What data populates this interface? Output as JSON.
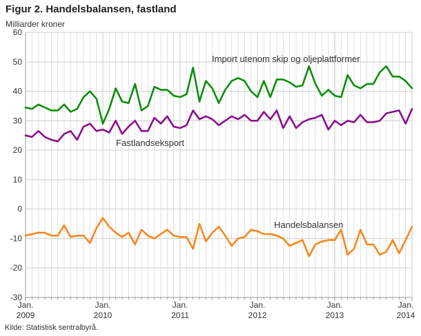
{
  "header": {
    "title": "Figur 2. Handelsbalansen, fastland",
    "unit_label": "Milliarder kroner"
  },
  "footer": {
    "source": "Kilde: Statistisk sentralbyrå."
  },
  "chart_data": {
    "type": "line",
    "title": "Figur 2. Handelsbalansen, fastland",
    "ylabel": "Milliarder kroner",
    "ylim": [
      -30,
      60
    ],
    "y_ticks": [
      60,
      50,
      40,
      30,
      20,
      10,
      0,
      -10,
      -20,
      -30
    ],
    "grid": true,
    "n_points": 61,
    "x_frequency": "monthly",
    "x_range": [
      "Jan. 2009",
      "Jan. 2014"
    ],
    "x_tick_positions": [
      0,
      12,
      24,
      36,
      48,
      60
    ],
    "x_ticks": [
      {
        "top": "Jan.",
        "bottom": "2009"
      },
      {
        "top": "Jan.",
        "bottom": "2010"
      },
      {
        "top": "Jan.",
        "bottom": "2011"
      },
      {
        "top": "Jan.",
        "bottom": "2012"
      },
      {
        "top": "Jan.",
        "bottom": "2013"
      },
      {
        "top": "Jan.",
        "bottom": "2014"
      }
    ],
    "series": [
      {
        "name": "Import utenom skip og oljeplattformer",
        "color": "#0b8e0b",
        "values": [
          34.5,
          34,
          35.5,
          34.5,
          33.5,
          33.5,
          35.5,
          33,
          34,
          38,
          40,
          37.5,
          29,
          34,
          41,
          36.5,
          36,
          42.5,
          33.5,
          35,
          41.5,
          40.5,
          40.5,
          38.5,
          38,
          39,
          48,
          36.5,
          43.5,
          41,
          36,
          40.5,
          43.5,
          44.5,
          43.5,
          40,
          38,
          43.5,
          38,
          44,
          44,
          43,
          41.5,
          42,
          48.5,
          42.5,
          38.5,
          40.5,
          38.5,
          38,
          45.5,
          42,
          41,
          42.5,
          42.5,
          46.5,
          48.5,
          45,
          45,
          43.5,
          41
        ]
      },
      {
        "name": "Fastlandseksport",
        "color": "#8b0f8b",
        "values": [
          25,
          24.5,
          26.5,
          24.5,
          23.5,
          23,
          25.5,
          26.5,
          23.5,
          28,
          29,
          26.5,
          27,
          26,
          30,
          25.5,
          28,
          30,
          26.5,
          26.5,
          31,
          29,
          31.5,
          28,
          27.5,
          28.5,
          33.5,
          30.5,
          31.5,
          30.5,
          28.5,
          30,
          31.5,
          30.5,
          32,
          30,
          30,
          33,
          30.5,
          33.5,
          27.5,
          31.5,
          27.5,
          29.5,
          30.5,
          31,
          32,
          27,
          30,
          28.5,
          30,
          29.5,
          32,
          29.5,
          29.5,
          30,
          32.5,
          33,
          33.5,
          29,
          34
        ]
      },
      {
        "name": "Handelsbalansen",
        "color": "#f8871e",
        "values": [
          -9,
          -8.5,
          -8,
          -8,
          -9,
          -9,
          -5.5,
          -9.5,
          -9,
          -9,
          -11.5,
          -6.5,
          -3,
          -6,
          -8,
          -9.5,
          -8,
          -12,
          -7,
          -9,
          -10,
          -8.5,
          -7,
          -9,
          -9.5,
          -9.5,
          -13.5,
          -5,
          -11,
          -8,
          -6,
          -9,
          -12.5,
          -10,
          -9.5,
          -7,
          -7.5,
          -8.5,
          -8.5,
          -9,
          -10,
          -12.5,
          -11.5,
          -10.5,
          -16,
          -12,
          -11,
          -10.5,
          -10.5,
          -7,
          -15.5,
          -13.5,
          -7,
          -12,
          -12,
          -15.5,
          -14.5,
          -10.5,
          -15,
          -10.5,
          -6
        ]
      }
    ],
    "colors": {
      "grid_major": "#cfcfcf",
      "grid_month": "#e2e2e2",
      "grid_year": "#c9c9c9",
      "axis": "#999999",
      "text": "#333333"
    }
  }
}
